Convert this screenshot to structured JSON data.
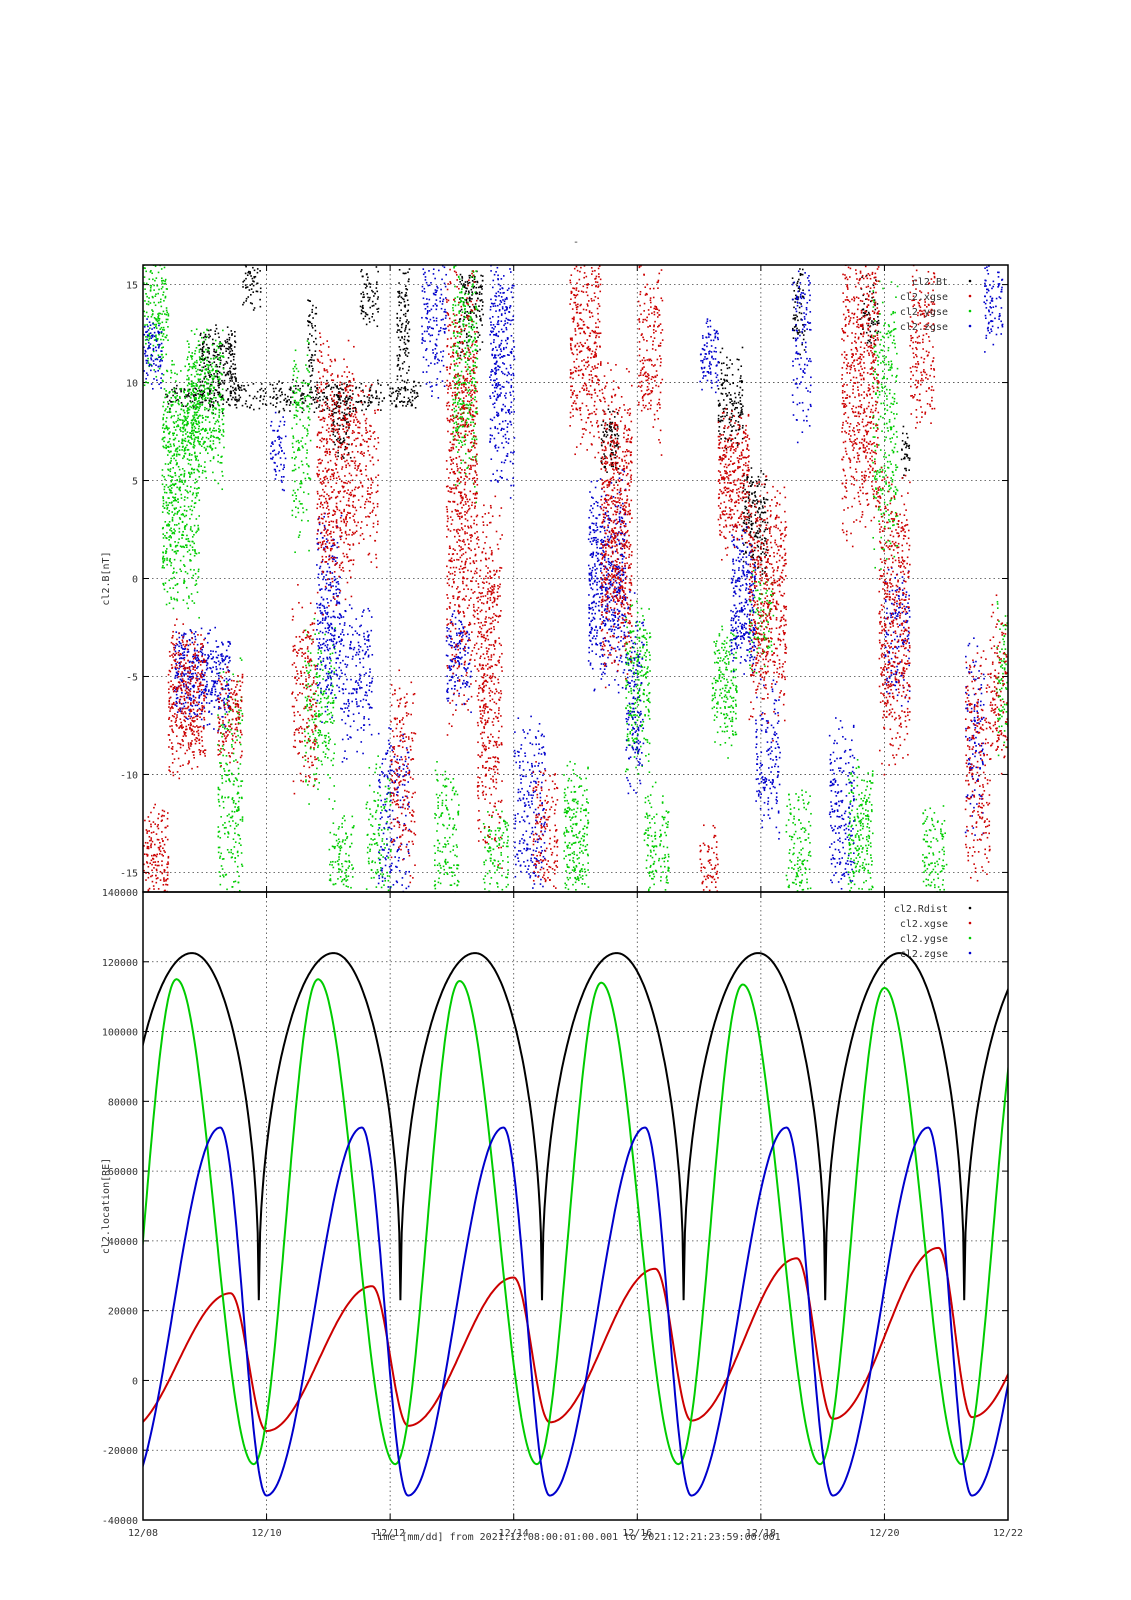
{
  "figure": {
    "top_title": "-",
    "footer_label": "Time [mm/dd]  from 2021:12:08:00:01:00.001  to  2021:12:21:23:59:00.001"
  },
  "chart_data": [
    {
      "type": "scatter",
      "ylabel": "cl2.B[nT]",
      "xlabel": "Time [mm/dd]",
      "xlim": [
        "12/08",
        "12/22"
      ],
      "ylim": [
        -16,
        16
      ],
      "yticks": [
        -15,
        -10,
        -5,
        0,
        5,
        10,
        15
      ],
      "grid": true,
      "legend_position": "top-right",
      "legend": [
        "cl2.Bt",
        "cl2.xgse",
        "cl2.ygse",
        "cl2.zgse"
      ],
      "series": [
        {
          "name": "cl2.Bt",
          "color": "#000000",
          "clusters": [
            [
              8.35,
              12.5,
              8.7,
              10.0,
              1.5
            ],
            [
              8.9,
              9.5,
              9.3,
              12.5,
              2.0
            ],
            [
              9.6,
              9.9,
              14,
              16,
              1.0
            ],
            [
              10.65,
              10.8,
              10,
              14,
              1.0
            ],
            [
              11.05,
              11.35,
              6.5,
              9.5,
              1.5
            ],
            [
              11.5,
              11.8,
              13,
              16,
              1.0
            ],
            [
              12.1,
              12.3,
              10,
              16,
              1.5
            ],
            [
              13.1,
              13.5,
              12,
              16,
              1.5
            ],
            [
              15.4,
              15.7,
              5.5,
              8.5,
              1.5
            ],
            [
              17.3,
              17.7,
              7,
              11,
              1.5
            ],
            [
              17.7,
              18.1,
              1,
              5,
              2.0
            ],
            [
              18.5,
              18.7,
              12,
              16,
              1.0
            ],
            [
              19.6,
              19.9,
              12,
              15,
              1.0
            ],
            [
              20.25,
              20.4,
              5.5,
              7.5,
              0.8
            ]
          ]
        },
        {
          "name": "cl2.xgse",
          "color": "#cc0000",
          "clusters": [
            [
              8.0,
              8.4,
              -16,
              -12,
              1.5
            ],
            [
              8.4,
              9.0,
              -9,
              -3,
              2.0
            ],
            [
              9.2,
              9.6,
              -9,
              -5,
              1.5
            ],
            [
              10.4,
              10.8,
              -10,
              -2,
              1.0
            ],
            [
              10.8,
              11.4,
              0,
              11,
              1.5
            ],
            [
              11.4,
              11.8,
              2,
              9,
              1.0
            ],
            [
              12.0,
              12.4,
              -14,
              -6,
              1.0
            ],
            [
              12.9,
              13.4,
              -4,
              14,
              1.5
            ],
            [
              13.4,
              13.8,
              -12,
              2,
              1.5
            ],
            [
              14.3,
              14.7,
              -16,
              -10,
              1.0
            ],
            [
              14.9,
              15.4,
              8,
              16,
              1.5
            ],
            [
              15.4,
              15.9,
              -3,
              9,
              2.0
            ],
            [
              16.0,
              16.4,
              8,
              16,
              1.0
            ],
            [
              17.0,
              17.3,
              -16,
              -13,
              1.0
            ],
            [
              17.3,
              17.8,
              2,
              8,
              2.0
            ],
            [
              17.8,
              18.4,
              -6,
              4,
              1.5
            ],
            [
              19.3,
              19.9,
              4,
              16,
              1.5
            ],
            [
              19.9,
              20.4,
              -8,
              4,
              1.5
            ],
            [
              20.4,
              20.8,
              8,
              16,
              1.0
            ],
            [
              21.3,
              21.7,
              -15,
              -5,
              1.0
            ],
            [
              21.7,
              22.0,
              -9,
              -2,
              1.0
            ]
          ]
        },
        {
          "name": "cl2.ygse",
          "color": "#00cc00",
          "clusters": [
            [
              8.0,
              8.4,
              11,
              16,
              1.5
            ],
            [
              8.3,
              8.9,
              0,
              10,
              2.0
            ],
            [
              8.7,
              9.3,
              6,
              12,
              2.0
            ],
            [
              9.2,
              9.6,
              -16,
              -6,
              1.0
            ],
            [
              10.4,
              10.7,
              3,
              11,
              1.0
            ],
            [
              10.6,
              11.1,
              -10,
              -3,
              1.0
            ],
            [
              11.0,
              11.4,
              -16,
              -12,
              1.0
            ],
            [
              11.6,
              12.0,
              -16,
              -10,
              0.8
            ],
            [
              12.7,
              13.1,
              -16,
              -10,
              1.0
            ],
            [
              13.0,
              13.4,
              6,
              16,
              1.5
            ],
            [
              13.5,
              13.9,
              -16,
              -12,
              1.0
            ],
            [
              14.8,
              15.2,
              -16,
              -10,
              1.5
            ],
            [
              15.8,
              16.2,
              -9,
              -2,
              1.5
            ],
            [
              16.1,
              16.5,
              -16,
              -11,
              1.0
            ],
            [
              17.2,
              17.6,
              -8,
              -3,
              1.5
            ],
            [
              17.8,
              18.2,
              -4,
              0,
              1.0
            ],
            [
              18.4,
              18.8,
              -16,
              -11,
              1.0
            ],
            [
              19.4,
              19.8,
              -16,
              -10,
              1.5
            ],
            [
              19.8,
              20.2,
              2,
              14,
              1.0
            ],
            [
              20.6,
              21.0,
              -16,
              -12,
              1.0
            ],
            [
              21.8,
              22.0,
              -8,
              -2,
              1.0
            ]
          ]
        },
        {
          "name": "cl2.zgse",
          "color": "#0000cc",
          "clusters": [
            [
              8.0,
              8.3,
              10,
              13,
              1.5
            ],
            [
              8.5,
              9.4,
              -7,
              -3,
              2.0
            ],
            [
              10.05,
              10.3,
              5,
              8,
              1.0
            ],
            [
              10.8,
              11.2,
              -6,
              2,
              1.5
            ],
            [
              11.2,
              11.7,
              -8,
              -2,
              1.0
            ],
            [
              11.8,
              12.3,
              -16,
              -8,
              0.8
            ],
            [
              12.5,
              12.9,
              10,
              16,
              1.0
            ],
            [
              12.9,
              13.3,
              -6,
              -2,
              1.5
            ],
            [
              13.6,
              14.0,
              6,
              16,
              1.5
            ],
            [
              14.0,
              14.5,
              -16,
              -8,
              1.0
            ],
            [
              15.2,
              15.8,
              -4,
              4,
              2.0
            ],
            [
              15.8,
              16.1,
              -10,
              -2,
              1.0
            ],
            [
              17.0,
              17.3,
              10,
              13,
              1.5
            ],
            [
              17.5,
              17.9,
              -4,
              2,
              2.0
            ],
            [
              17.9,
              18.3,
              -12,
              -6,
              1.0
            ],
            [
              18.5,
              18.8,
              8,
              16,
              0.8
            ],
            [
              19.1,
              19.5,
              -16,
              -8,
              1.0
            ],
            [
              20.0,
              20.4,
              -6,
              0,
              1.0
            ],
            [
              21.3,
              21.6,
              -12,
              -4,
              0.8
            ],
            [
              21.6,
              21.9,
              12,
              16,
              1.0
            ]
          ]
        }
      ]
    },
    {
      "type": "line",
      "ylabel": "cl2.location[RE]",
      "xlabel": "Time [mm/dd]",
      "xlim": [
        "12/08",
        "12/22"
      ],
      "ylim": [
        -40000,
        140000
      ],
      "yticks": [
        -40000,
        -20000,
        0,
        20000,
        40000,
        60000,
        80000,
        100000,
        120000,
        140000
      ],
      "xticks": [
        "12/08",
        "12/10",
        "12/12",
        "12/14",
        "12/16",
        "12/18",
        "12/20",
        "12/22"
      ],
      "grid": true,
      "legend_position": "top-right",
      "legend": [
        "cl2.Rdist",
        "cl2.xgse",
        "cl2.ygse",
        "cl2.zgse"
      ],
      "orbit_period_days": 2.284,
      "series": [
        {
          "name": "cl2.Rdist",
          "color": "#000000",
          "minima": [
            [
              "12/09 21:00",
              23000
            ],
            [
              "12/12 04:00",
              23000
            ],
            [
              "12/14 11:00",
              23000
            ],
            [
              "12/16 18:00",
              23000
            ],
            [
              "12/19 01:00",
              23000
            ],
            [
              "12/21 07:00",
              23000
            ]
          ],
          "maxima": [
            [
              "12/08 19:00",
              122500
            ],
            [
              "12/11 02:00",
              122500
            ],
            [
              "12/13 09:00",
              122500
            ],
            [
              "12/15 16:00",
              122500
            ],
            [
              "12/17 23:00",
              122500
            ],
            [
              "12/20 06:00",
              122500
            ]
          ]
        },
        {
          "name": "cl2.xgse",
          "color": "#cc0000",
          "minima": [
            [
              "12/10 00:00",
              -14500
            ],
            [
              "12/12 07:00",
              -13000
            ],
            [
              "12/14 14:00",
              -12000
            ],
            [
              "12/16 21:00",
              -11500
            ],
            [
              "12/19 04:00",
              -11000
            ],
            [
              "12/21 10:00",
              -10500
            ]
          ],
          "maxima": [
            [
              "12/09 10:00",
              25000
            ],
            [
              "12/11 17:00",
              27000
            ],
            [
              "12/14 00:00",
              29500
            ],
            [
              "12/16 07:00",
              32000
            ],
            [
              "12/18 14:00",
              35000
            ],
            [
              "12/20 21:00",
              38000
            ]
          ]
        },
        {
          "name": "cl2.ygse",
          "color": "#00cc00",
          "minima": [
            [
              "12/09 19:00",
              -24000
            ],
            [
              "12/12 02:00",
              -24000
            ],
            [
              "12/14 09:00",
              -24000
            ],
            [
              "12/16 16:00",
              -24000
            ],
            [
              "12/18 23:00",
              -24000
            ],
            [
              "12/21 06:00",
              -24000
            ]
          ],
          "maxima": [
            [
              "12/08 13:00",
              115000
            ],
            [
              "12/10 20:00",
              115000
            ],
            [
              "12/13 03:00",
              114500
            ],
            [
              "12/15 10:00",
              114000
            ],
            [
              "12/17 17:00",
              113500
            ],
            [
              "12/20 00:00",
              112500
            ]
          ]
        },
        {
          "name": "cl2.zgse",
          "color": "#0000cc",
          "minima": [
            [
              "12/10 00:00",
              -33000
            ],
            [
              "12/12 07:00",
              -33000
            ],
            [
              "12/14 14:00",
              -33000
            ],
            [
              "12/16 21:00",
              -33000
            ],
            [
              "12/19 04:00",
              -33000
            ],
            [
              "12/21 10:00",
              -33000
            ]
          ],
          "maxima": [
            [
              "12/09 06:00",
              72500
            ],
            [
              "12/11 13:00",
              72500
            ],
            [
              "12/13 20:00",
              72500
            ],
            [
              "12/16 03:00",
              72500
            ],
            [
              "12/18 10:00",
              72500
            ],
            [
              "12/20 17:00",
              72500
            ]
          ]
        }
      ]
    }
  ]
}
